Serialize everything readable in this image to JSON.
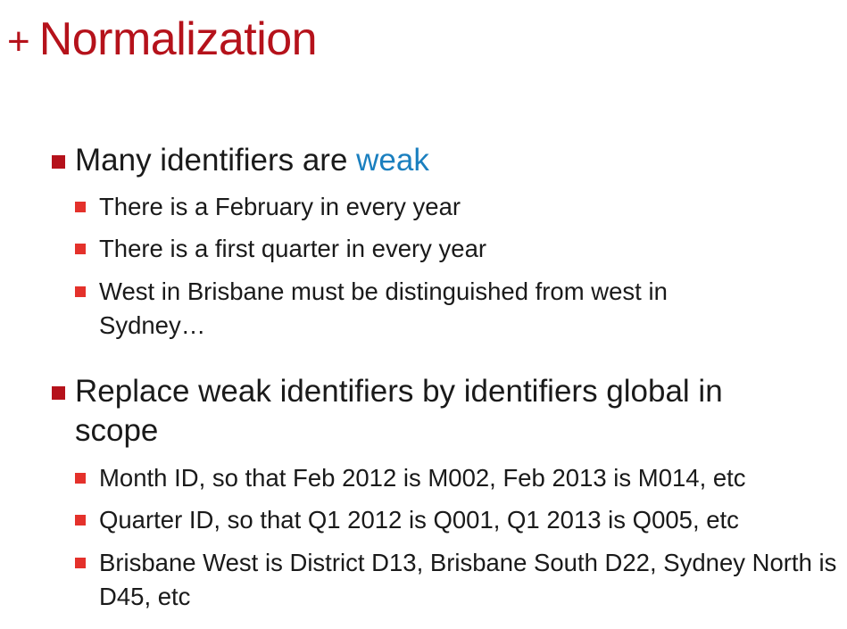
{
  "title": {
    "plus": "+",
    "text": "Normalization"
  },
  "bullets": [
    {
      "text_before": "Many identifiers are ",
      "text_accent": "weak",
      "sub": [
        "There is a February in every year",
        "There is a first quarter in every year",
        "West in Brisbane must be distinguished from west in Sydney…"
      ]
    },
    {
      "text": "Replace weak identifiers by identifiers global in scope",
      "sub": [
        "Month ID, so that Feb 2012 is M002, Feb 2013 is M014, etc",
        "Quarter ID, so that Q1 2012 is Q001, Q1 2013 is Q005, etc",
        "Brisbane West is District D13, Brisbane South D22, Sydney North is D45, etc"
      ]
    }
  ],
  "colors": {
    "title": "#b5121b",
    "bullet_l1": "#b5121b",
    "bullet_l2": "#e4312b",
    "accent": "#1a7fbf"
  }
}
